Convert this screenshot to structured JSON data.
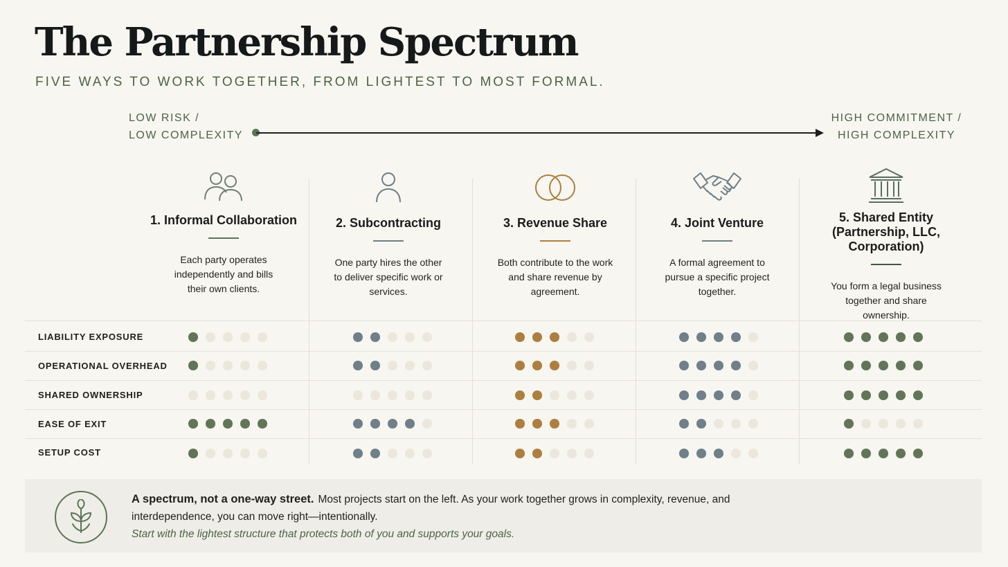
{
  "header": {
    "title": "The Partnership Spectrum",
    "subtitle": "FIVE WAYS TO WORK TOGETHER, FROM LIGHTEST TO MOST FORMAL."
  },
  "axis": {
    "left_line1": "LOW RISK /",
    "left_line2": "LOW COMPLEXITY",
    "right_line1": "HIGH COMMITMENT /",
    "right_line2": "HIGH COMPLEXITY"
  },
  "columns": [
    {
      "title": "1. Informal Collaboration",
      "description": "Each party operates independently and bills their own clients.",
      "icon": "people-icon",
      "accent": "#5a7556"
    },
    {
      "title": "2. Subcontracting",
      "description": "One party hires the other to deliver specific work or services.",
      "icon": "person-icon",
      "accent": "#6e7f86"
    },
    {
      "title": "3. Revenue Share",
      "description": "Both contribute to the work and share revenue by agreement.",
      "icon": "rings-icon",
      "accent": "#ac7f3d"
    },
    {
      "title": "4. Joint Venture",
      "description": "A formal agreement to pursue a specific project together.",
      "icon": "handshake-icon",
      "accent": "#6e7f86"
    },
    {
      "title": "5. Shared Entity (Partnership, LLC, Corporation)",
      "description": "You form a legal business together and share ownership.",
      "icon": "building-icon",
      "accent": "#5a7556"
    }
  ],
  "dot_colors": [
    "#627558",
    "#6f8089",
    "#ad7f3e",
    "#6f8089",
    "#627558"
  ],
  "empty_dot_color": "#ebe7dd",
  "rows": [
    {
      "label": "LIABILITY EXPOSURE",
      "ratings": [
        1,
        2,
        3,
        4,
        5
      ]
    },
    {
      "label": "OPERATIONAL OVERHEAD",
      "ratings": [
        1,
        2,
        3,
        4,
        5
      ]
    },
    {
      "label": "SHARED OWNERSHIP",
      "ratings": [
        0,
        0,
        2,
        4,
        5
      ]
    },
    {
      "label": "EASE OF EXIT",
      "ratings": [
        5,
        4,
        3,
        2,
        1
      ]
    },
    {
      "label": "SETUP COST",
      "ratings": [
        1,
        2,
        2,
        3,
        5
      ]
    }
  ],
  "callout": {
    "heading": "A spectrum, not a one-way street.",
    "body": "Most projects start on the left. As your work together grows in complexity, revenue, and interdependence, you can move right—intentionally.",
    "tagline": "Start with the lightest structure that protects both of you and supports your goals.",
    "icon": "sprout-icon"
  }
}
